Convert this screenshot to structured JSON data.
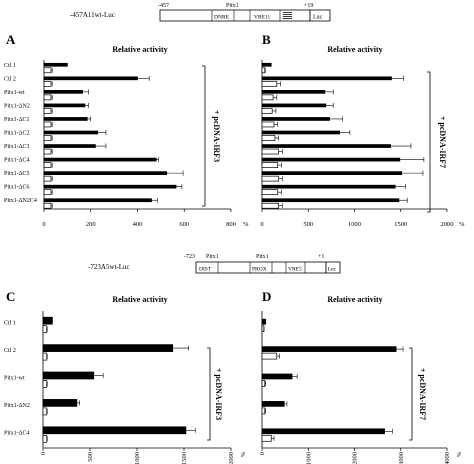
{
  "constructs": [
    {
      "label": "-457A11wt-Luc",
      "start": "-457",
      "end": "+19",
      "pitx_label": "Pitx1",
      "elements": [
        "DNRE",
        "VRE11"
      ],
      "reporter": "Luc"
    },
    {
      "label": "-723A5wt-Luc",
      "start": "-723",
      "end": "+1",
      "pitx_labels": [
        "Pitx1",
        "Pitx1"
      ],
      "elements": [
        "DIST",
        "PROX",
        "VRE5"
      ],
      "reporter": "Luc"
    }
  ],
  "chart_data": [
    {
      "panel": "A",
      "type": "bar",
      "orientation": "horizontal",
      "title": "Relative activity",
      "bracket_label": "+ pcDNA-IRF3",
      "categories": [
        "Ctl 1",
        "Ctl 2",
        "Pitx1-wt",
        "Pitx1-ΔN2",
        "Pitx1-ΔC1",
        "Pitx1-ΔC2",
        "Pitx1-ΔC3",
        "Pitx1-ΔC4",
        "Pitx1-ΔC5",
        "Pitx1-ΔC6",
        "Pitx1-ΔN2C4"
      ],
      "series": [
        {
          "color": "#000000",
          "values": [
            100,
            400,
            165,
            175,
            185,
            230,
            220,
            480,
            525,
            565,
            460
          ],
          "errors": [
            0,
            50,
            25,
            15,
            15,
            35,
            45,
            10,
            70,
            25,
            25
          ]
        },
        {
          "color": "#ffffff",
          "values": [
            30,
            30,
            30,
            30,
            30,
            30,
            30,
            30,
            30,
            30,
            30
          ],
          "errors": [
            5,
            5,
            5,
            5,
            5,
            5,
            5,
            5,
            5,
            5,
            5
          ]
        }
      ],
      "xlim": [
        0,
        800
      ],
      "ticks": [
        0,
        200,
        400,
        600,
        800
      ],
      "tick_suffix": "%"
    },
    {
      "panel": "B",
      "type": "bar",
      "orientation": "horizontal",
      "title": "Relative activity",
      "bracket_label": "+ pcDNA-IRF7",
      "categories": [
        "Ctl 1",
        "Ctl 2",
        "Pitx1-wt",
        "Pitx1-ΔN2",
        "Pitx1-ΔC1",
        "Pitx1-ΔC2",
        "Pitx1-ΔC3",
        "Pitx1-ΔC4",
        "Pitx1-ΔC5",
        "Pitx1-ΔC6",
        "Pitx1-ΔN2C4"
      ],
      "series": [
        {
          "color": "#000000",
          "values": [
            100,
            1400,
            680,
            690,
            730,
            840,
            1390,
            1490,
            1510,
            1440,
            1480
          ],
          "errors": [
            0,
            130,
            90,
            80,
            140,
            110,
            220,
            260,
            230,
            110,
            90
          ]
        },
        {
          "color": "#ffffff",
          "values": [
            30,
            160,
            120,
            110,
            130,
            140,
            180,
            170,
            180,
            170,
            180
          ],
          "errors": [
            5,
            40,
            40,
            40,
            40,
            40,
            40,
            40,
            40,
            40,
            40
          ]
        }
      ],
      "xlim": [
        0,
        2000
      ],
      "ticks": [
        0,
        500,
        1000,
        1500,
        2000
      ],
      "tick_suffix": "%"
    },
    {
      "panel": "C",
      "type": "bar",
      "orientation": "horizontal",
      "title": "Relative activity",
      "bracket_label": "+ pcDNA-IRF3",
      "categories": [
        "Ctl 1",
        "Ctl 2",
        "Pitx1-wt",
        "Pitx1-ΔN2",
        "Pitx1-ΔC4"
      ],
      "series": [
        {
          "color": "#000000",
          "values": [
            100,
            1380,
            540,
            360,
            1520
          ],
          "errors": [
            0,
            170,
            100,
            30,
            100
          ]
        },
        {
          "color": "#ffffff",
          "values": [
            40,
            40,
            40,
            40,
            40
          ],
          "errors": [
            5,
            5,
            5,
            5,
            5
          ]
        }
      ],
      "xlim": [
        0,
        2000
      ],
      "ticks": [
        0,
        500,
        1000,
        1500,
        2000
      ],
      "tick_suffix": "%"
    },
    {
      "panel": "D",
      "type": "bar",
      "orientation": "horizontal",
      "title": "Relative activity",
      "bracket_label": "+ pcDNA-IRF7",
      "categories": [
        "Ctl 1",
        "Ctl 2",
        "Pitx1-wt",
        "Pitx1-ΔN2",
        "Pitx1-ΔC4"
      ],
      "series": [
        {
          "color": "#000000",
          "values": [
            80,
            2900,
            650,
            480,
            2650
          ],
          "errors": [
            0,
            150,
            110,
            60,
            170
          ]
        },
        {
          "color": "#ffffff",
          "values": [
            40,
            320,
            60,
            60,
            200
          ],
          "errors": [
            5,
            60,
            20,
            20,
            60
          ]
        }
      ],
      "xlim": [
        0,
        4000
      ],
      "ticks": [
        0,
        1000,
        2000,
        3000,
        4000
      ],
      "tick_suffix": "%"
    }
  ]
}
